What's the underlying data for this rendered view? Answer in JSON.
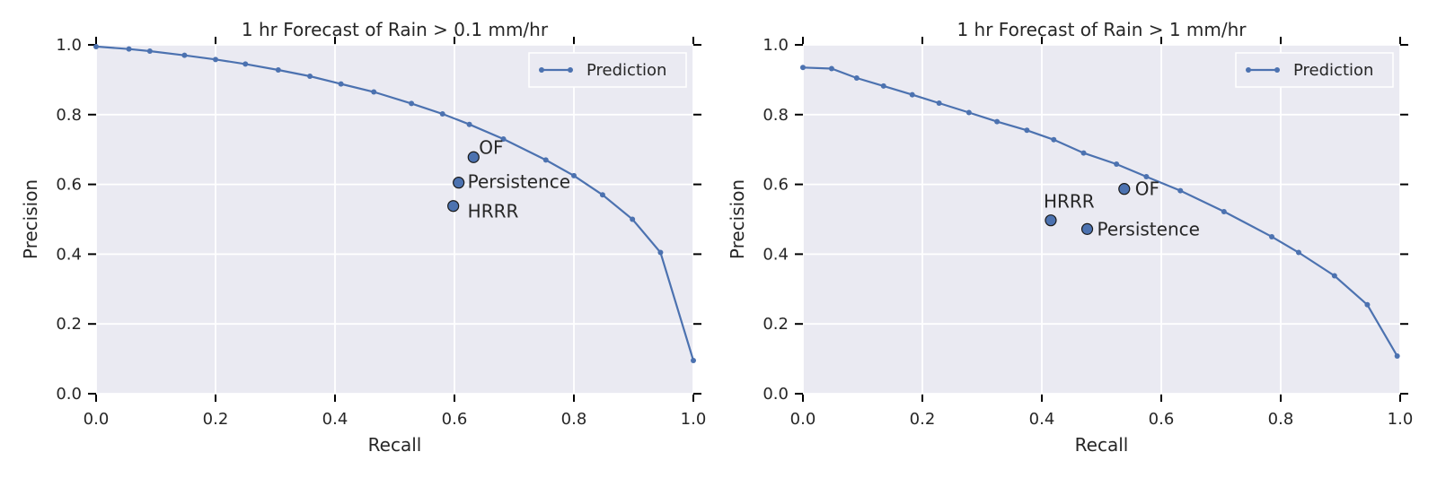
{
  "chart_data": [
    {
      "type": "line",
      "title": "1 hr Forecast of Rain > 0.1 mm/hr",
      "xlabel": "Recall",
      "ylabel": "Precision",
      "xlim": [
        0.0,
        1.0
      ],
      "ylim": [
        0.0,
        1.0
      ],
      "xticks": [
        "0.0",
        "0.2",
        "0.4",
        "0.6",
        "0.8",
        "1.0"
      ],
      "yticks": [
        "0.0",
        "0.2",
        "0.4",
        "0.6",
        "0.8",
        "1.0"
      ],
      "grid": true,
      "legend": {
        "position": "top-right",
        "entries": [
          "Prediction"
        ]
      },
      "series": [
        {
          "name": "Prediction",
          "color": "#4c72b0",
          "x": [
            0.0,
            0.055,
            0.09,
            0.148,
            0.2,
            0.25,
            0.305,
            0.358,
            0.41,
            0.465,
            0.528,
            0.58,
            0.625,
            0.682,
            0.753,
            0.8,
            0.848,
            0.898,
            0.945,
            1.0
          ],
          "y": [
            0.995,
            0.988,
            0.982,
            0.97,
            0.958,
            0.945,
            0.928,
            0.91,
            0.888,
            0.865,
            0.832,
            0.802,
            0.772,
            0.73,
            0.67,
            0.625,
            0.57,
            0.5,
            0.405,
            0.095
          ]
        }
      ],
      "points": [
        {
          "label": "OF",
          "x": 0.632,
          "y": 0.678
        },
        {
          "label": "Persistence",
          "x": 0.607,
          "y": 0.605
        },
        {
          "label": "HRRR",
          "x": 0.598,
          "y": 0.538
        }
      ]
    },
    {
      "type": "line",
      "title": "1 hr Forecast of Rain > 1 mm/hr",
      "xlabel": "Recall",
      "ylabel": "Precision",
      "xlim": [
        0.0,
        1.0
      ],
      "ylim": [
        0.0,
        1.0
      ],
      "xticks": [
        "0.0",
        "0.2",
        "0.4",
        "0.6",
        "0.8",
        "1.0"
      ],
      "yticks": [
        "0.0",
        "0.2",
        "0.4",
        "0.6",
        "0.8",
        "1.0"
      ],
      "grid": true,
      "legend": {
        "position": "top-right",
        "entries": [
          "Prediction"
        ]
      },
      "series": [
        {
          "name": "Prediction",
          "color": "#4c72b0",
          "x": [
            0.0,
            0.048,
            0.09,
            0.135,
            0.183,
            0.228,
            0.278,
            0.325,
            0.375,
            0.42,
            0.47,
            0.525,
            0.575,
            0.632,
            0.705,
            0.785,
            0.83,
            0.89,
            0.945,
            0.995
          ],
          "y": [
            0.935,
            0.932,
            0.905,
            0.882,
            0.857,
            0.833,
            0.806,
            0.78,
            0.755,
            0.728,
            0.69,
            0.658,
            0.622,
            0.582,
            0.522,
            0.45,
            0.405,
            0.338,
            0.255,
            0.108
          ]
        }
      ],
      "points": [
        {
          "label": "OF",
          "x": 0.538,
          "y": 0.587
        },
        {
          "label": "HRRR",
          "x": 0.415,
          "y": 0.497
        },
        {
          "label": "Persistence",
          "x": 0.476,
          "y": 0.472
        }
      ]
    }
  ]
}
